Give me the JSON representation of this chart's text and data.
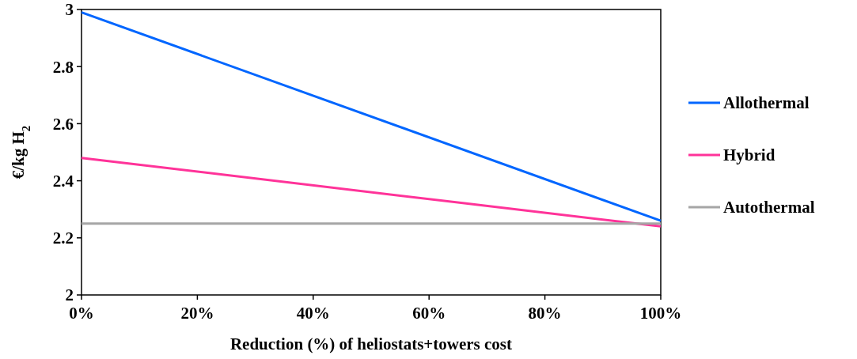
{
  "chart_data": {
    "type": "line",
    "xlabel": "Reduction (%) of heliostats+towers cost",
    "ylabel": "€/kg H$_{2}$",
    "x": [
      0,
      100
    ],
    "xlim": [
      0,
      100
    ],
    "xticks": [
      {
        "value": 0,
        "label": "0%"
      },
      {
        "value": 20,
        "label": "20%"
      },
      {
        "value": 40,
        "label": "40%"
      },
      {
        "value": 60,
        "label": "60%"
      },
      {
        "value": 80,
        "label": "80%"
      },
      {
        "value": 100,
        "label": "100%"
      }
    ],
    "ylim": [
      2,
      3
    ],
    "yticks": [
      2,
      {
        "value": 2.2,
        "label": "2.2"
      },
      {
        "value": 2.4,
        "label": "2.4"
      },
      {
        "value": 2.6,
        "label": "2.6"
      },
      {
        "value": 2.8,
        "label": "2.8"
      },
      3
    ],
    "series": [
      {
        "name": "Allothermal",
        "color": "#0066ff",
        "values": [
          2.99,
          2.26
        ]
      },
      {
        "name": "Hybrid",
        "color": "#ff3399",
        "values": [
          2.48,
          2.24
        ]
      },
      {
        "name": "Autothermal",
        "color": "#a6a6a6",
        "values": [
          2.25,
          2.25
        ]
      }
    ],
    "legend": "right",
    "grid": false,
    "marker": "none",
    "line_style": "solid"
  }
}
